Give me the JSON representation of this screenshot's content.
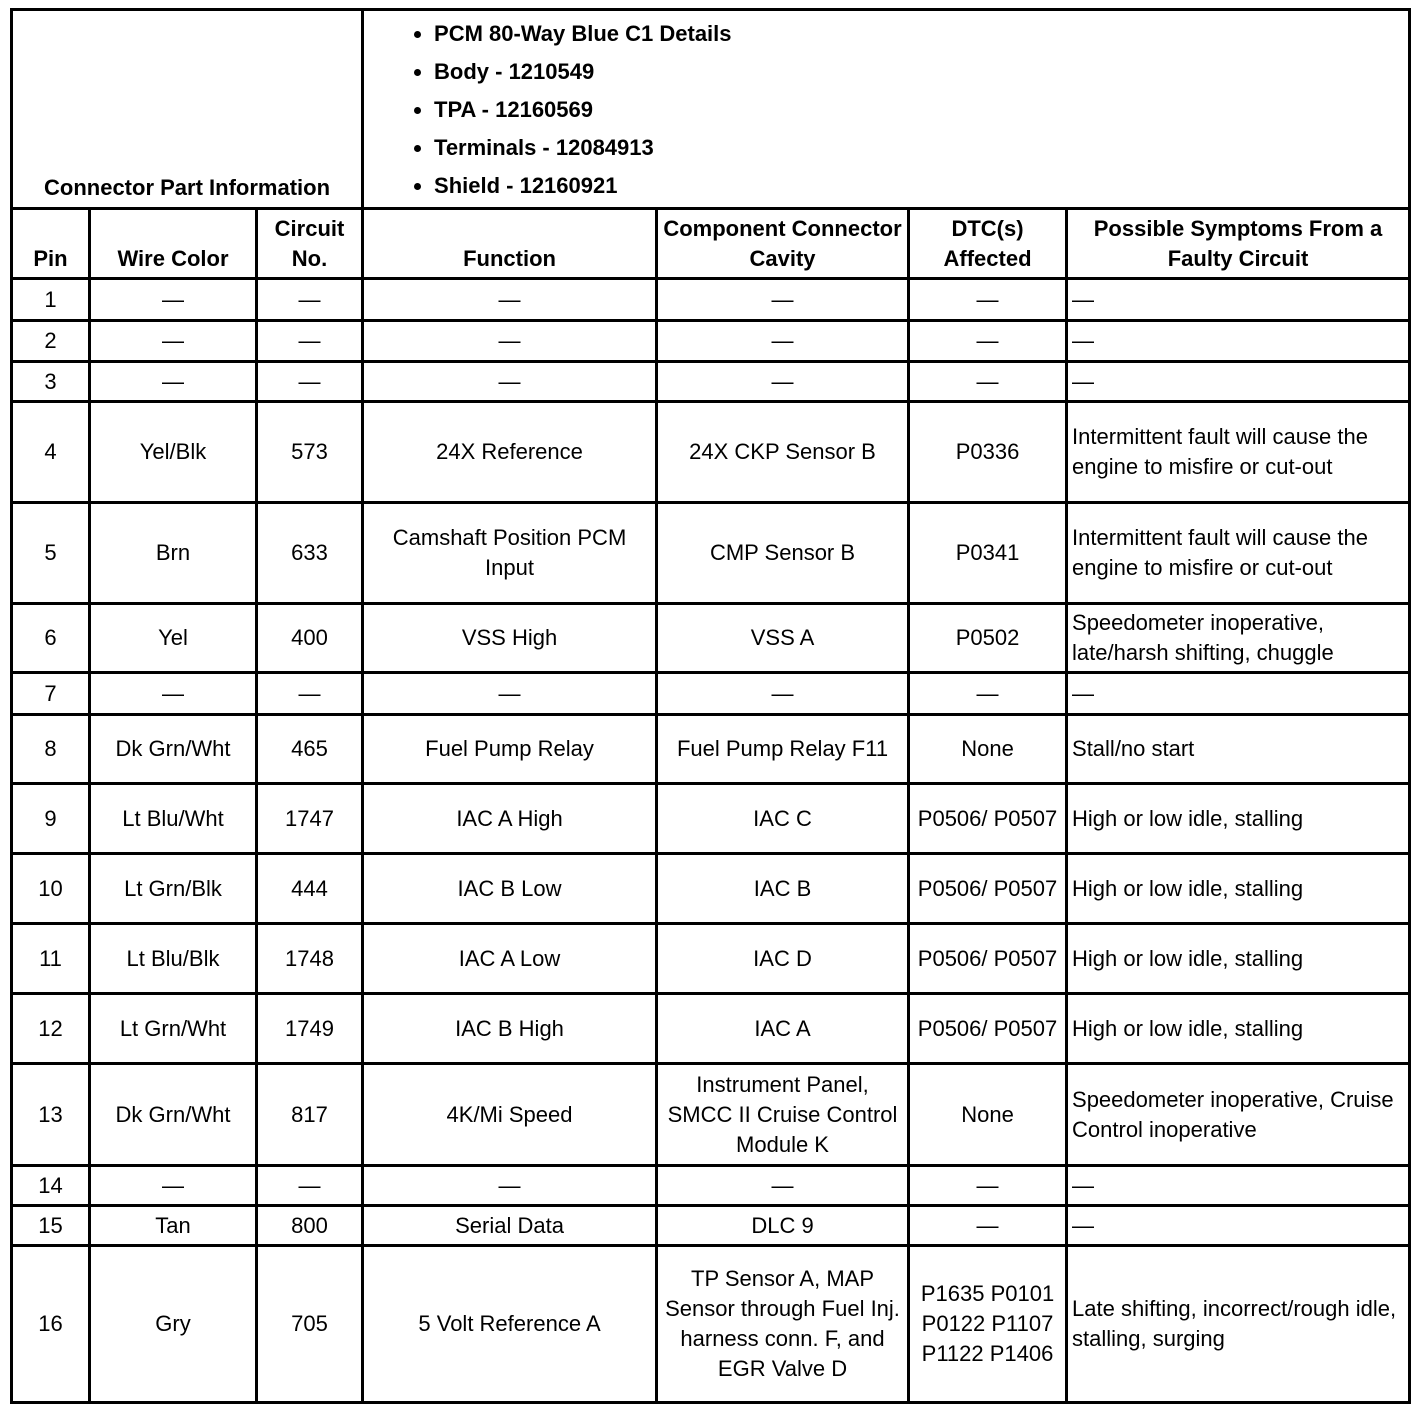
{
  "connector_info": {
    "label": "Connector Part Information",
    "details": [
      "PCM 80-Way Blue C1 Details",
      "Body - 1210549",
      "TPA - 12160569",
      "Terminals - 12084913",
      "Shield - 12160921"
    ]
  },
  "columns": [
    "Pin",
    "Wire Color",
    "Circuit No.",
    "Function",
    "Component Connector Cavity",
    "DTC(s) Affected",
    "Possible Symptoms From a Faulty Circuit"
  ],
  "rows": [
    {
      "pin": "1",
      "wire": "—",
      "circuit": "—",
      "function": "—",
      "cavity": "—",
      "dtc": "—",
      "symptoms": "—"
    },
    {
      "pin": "2",
      "wire": "—",
      "circuit": "—",
      "function": "—",
      "cavity": "—",
      "dtc": "—",
      "symptoms": "—"
    },
    {
      "pin": "3",
      "wire": "—",
      "circuit": "—",
      "function": "—",
      "cavity": "—",
      "dtc": "—",
      "symptoms": "—"
    },
    {
      "pin": "4",
      "wire": "Yel/Blk",
      "circuit": "573",
      "function": "24X Reference",
      "cavity": "24X CKP Sensor B",
      "dtc": "P0336",
      "symptoms": "Intermittent fault will cause the engine to misfire or cut-out"
    },
    {
      "pin": "5",
      "wire": "Brn",
      "circuit": "633",
      "function": "Camshaft Position PCM Input",
      "cavity": "CMP Sensor B",
      "dtc": "P0341",
      "symptoms": "Intermittent fault will cause the engine to misfire or cut-out"
    },
    {
      "pin": "6",
      "wire": "Yel",
      "circuit": "400",
      "function": "VSS High",
      "cavity": "VSS A",
      "dtc": "P0502",
      "symptoms": "Speedometer inoperative, late/harsh shifting, chuggle"
    },
    {
      "pin": "7",
      "wire": "—",
      "circuit": "—",
      "function": "—",
      "cavity": "—",
      "dtc": "—",
      "symptoms": "—"
    },
    {
      "pin": "8",
      "wire": "Dk Grn/Wht",
      "circuit": "465",
      "function": "Fuel Pump Relay",
      "cavity": "Fuel Pump Relay F11",
      "dtc": "None",
      "symptoms": "Stall/no start"
    },
    {
      "pin": "9",
      "wire": "Lt Blu/Wht",
      "circuit": "1747",
      "function": "IAC A High",
      "cavity": "IAC C",
      "dtc": "P0506/ P0507",
      "symptoms": "High or low idle, stalling"
    },
    {
      "pin": "10",
      "wire": "Lt Grn/Blk",
      "circuit": "444",
      "function": "IAC B Low",
      "cavity": "IAC B",
      "dtc": "P0506/ P0507",
      "symptoms": "High or low idle, stalling"
    },
    {
      "pin": "11",
      "wire": "Lt Blu/Blk",
      "circuit": "1748",
      "function": "IAC A Low",
      "cavity": "IAC D",
      "dtc": "P0506/ P0507",
      "symptoms": "High or low idle, stalling"
    },
    {
      "pin": "12",
      "wire": "Lt Grn/Wht",
      "circuit": "1749",
      "function": "IAC B High",
      "cavity": "IAC A",
      "dtc": "P0506/ P0507",
      "symptoms": "High or low idle, stalling"
    },
    {
      "pin": "13",
      "wire": "Dk Grn/Wht",
      "circuit": "817",
      "function": "4K/Mi Speed",
      "cavity": "Instrument Panel, SMCC II Cruise Control Module K",
      "dtc": "None",
      "symptoms": "Speedometer inoperative, Cruise Control inoperative"
    },
    {
      "pin": "14",
      "wire": "—",
      "circuit": "—",
      "function": "—",
      "cavity": "—",
      "dtc": "—",
      "symptoms": "—"
    },
    {
      "pin": "15",
      "wire": "Tan",
      "circuit": "800",
      "function": "Serial Data",
      "cavity": "DLC 9",
      "dtc": "—",
      "symptoms": "—"
    },
    {
      "pin": "16",
      "wire": "Gry",
      "circuit": "705",
      "function": "5 Volt Reference A",
      "cavity": "TP Sensor A, MAP Sensor through Fuel Inj. harness conn. F, and EGR Valve D",
      "dtc": "P1635 P0101 P0122 P1107 P1122 P1406",
      "symptoms": "Late shifting, incorrect/rough idle, stalling, surging"
    }
  ]
}
